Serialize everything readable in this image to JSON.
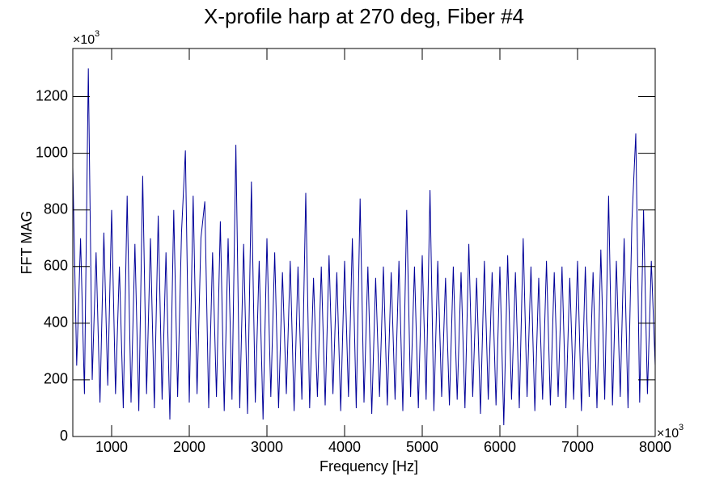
{
  "chart_data": {
    "type": "line",
    "title": "X-profile harp at 270 deg, Fiber #4",
    "x_label": "Frequency [Hz]",
    "y_label": "FFT MAG",
    "x_multiplier": {
      "base": "×10",
      "exponent": "3"
    },
    "y_multiplier": {
      "base": "×10",
      "exponent": "3"
    },
    "xlim": [
      500,
      8000
    ],
    "ylim": [
      0,
      1370
    ],
    "xticks": [
      1000,
      2000,
      3000,
      4000,
      5000,
      6000,
      7000,
      8000
    ],
    "yticks": [
      0,
      200,
      400,
      600,
      800,
      1000,
      1200
    ],
    "series": [
      {
        "color": "#000099",
        "x": [
          500,
          550,
          600,
          650,
          700,
          750,
          800,
          850,
          900,
          950,
          1000,
          1050,
          1100,
          1150,
          1200,
          1250,
          1300,
          1350,
          1400,
          1450,
          1500,
          1550,
          1600,
          1650,
          1700,
          1750,
          1800,
          1850,
          1900,
          1950,
          2000,
          2050,
          2100,
          2150,
          2200,
          2250,
          2300,
          2350,
          2400,
          2450,
          2500,
          2550,
          2600,
          2650,
          2700,
          2750,
          2800,
          2850,
          2900,
          2950,
          3000,
          3050,
          3100,
          3150,
          3200,
          3250,
          3300,
          3350,
          3400,
          3450,
          3500,
          3550,
          3600,
          3650,
          3700,
          3750,
          3800,
          3850,
          3900,
          3950,
          4000,
          4050,
          4100,
          4150,
          4200,
          4250,
          4300,
          4350,
          4400,
          4450,
          4500,
          4550,
          4600,
          4650,
          4700,
          4750,
          4800,
          4850,
          4900,
          4950,
          5000,
          5050,
          5100,
          5150,
          5200,
          5250,
          5300,
          5350,
          5400,
          5450,
          5500,
          5550,
          5600,
          5650,
          5700,
          5750,
          5800,
          5850,
          5900,
          5950,
          6000,
          6050,
          6100,
          6150,
          6200,
          6250,
          6300,
          6350,
          6400,
          6450,
          6500,
          6550,
          6600,
          6650,
          6700,
          6750,
          6800,
          6850,
          6900,
          6950,
          7000,
          7050,
          7100,
          7150,
          7200,
          7250,
          7300,
          7350,
          7400,
          7450,
          7500,
          7550,
          7600,
          7650,
          7700,
          7750,
          7800,
          7850,
          7900,
          7950,
          8000
        ],
        "values": [
          950,
          250,
          700,
          150,
          1300,
          200,
          650,
          120,
          720,
          180,
          800,
          150,
          600,
          100,
          850,
          120,
          680,
          90,
          920,
          150,
          700,
          100,
          780,
          130,
          650,
          60,
          800,
          140,
          720,
          1010,
          120,
          850,
          150,
          700,
          830,
          100,
          650,
          140,
          760,
          90,
          700,
          130,
          1030,
          100,
          680,
          80,
          900,
          120,
          620,
          60,
          700,
          140,
          650,
          100,
          580,
          150,
          620,
          90,
          600,
          130,
          860,
          100,
          560,
          140,
          600,
          110,
          640,
          150,
          580,
          90,
          620,
          140,
          700,
          100,
          840,
          120,
          600,
          80,
          560,
          140,
          600,
          110,
          580,
          130,
          620,
          90,
          800,
          140,
          600,
          100,
          640,
          130,
          870,
          90,
          620,
          140,
          560,
          110,
          600,
          130,
          580,
          100,
          680,
          140,
          560,
          80,
          620,
          130,
          580,
          110,
          600,
          40,
          640,
          130,
          580,
          100,
          700,
          140,
          600,
          90,
          560,
          130,
          620,
          110,
          580,
          140,
          600,
          100,
          560,
          130,
          620,
          90,
          600,
          140,
          580,
          100,
          660,
          130,
          850,
          110,
          620,
          140,
          700,
          100,
          760,
          1070,
          120,
          800,
          150,
          620,
          250
        ]
      }
    ]
  }
}
